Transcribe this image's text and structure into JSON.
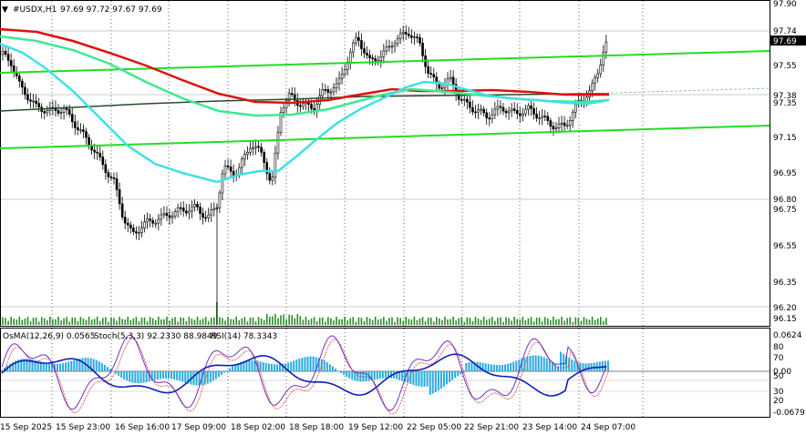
{
  "header": {
    "symbol": "#USDX,H1",
    "ohlc": "97.69 97.72 97.67 97.69"
  },
  "price_axis": {
    "ticks": [
      "97.90",
      "97.74",
      "97.69",
      "97.55",
      "97.38",
      "97.35",
      "97.15",
      "96.95",
      "96.80",
      "96.75",
      "96.55",
      "96.35",
      "96.20",
      "96.15"
    ],
    "current_price": "97.69"
  },
  "indicator": {
    "osma_label": "OsMA(12,26,9) 0.0565",
    "stoch_label": "Stoch(5,3,3) 92.2330 88.9849",
    "rsi_label": "RSI(14) 78.3343",
    "axis_ticks": [
      "0.0624",
      "80",
      "70",
      "0.00",
      "50",
      "30",
      "20",
      "-0.0679"
    ]
  },
  "time_axis": {
    "labels": [
      "15 Sep 2025",
      "15 Sep 23:00",
      "16 Sep 16:00",
      "17 Sep 09:00",
      "18 Sep 02:00",
      "18 Sep 18:00",
      "19 Sep 12:00",
      "22 Sep 05:00",
      "22 Sep 21:00",
      "23 Sep 14:00",
      "24 Sep 07:00"
    ]
  },
  "colors": {
    "ma_red": "#e01010",
    "ma_cyan": "#40e0e8",
    "ma_mint": "#40e890",
    "ma_dark": "#2a4a2a",
    "channel": "#22dd22",
    "histogram": "#2aaae0",
    "rsi": "#1020b0",
    "stoch_main": "#6020c0",
    "stoch_signal": "#e04040"
  }
}
